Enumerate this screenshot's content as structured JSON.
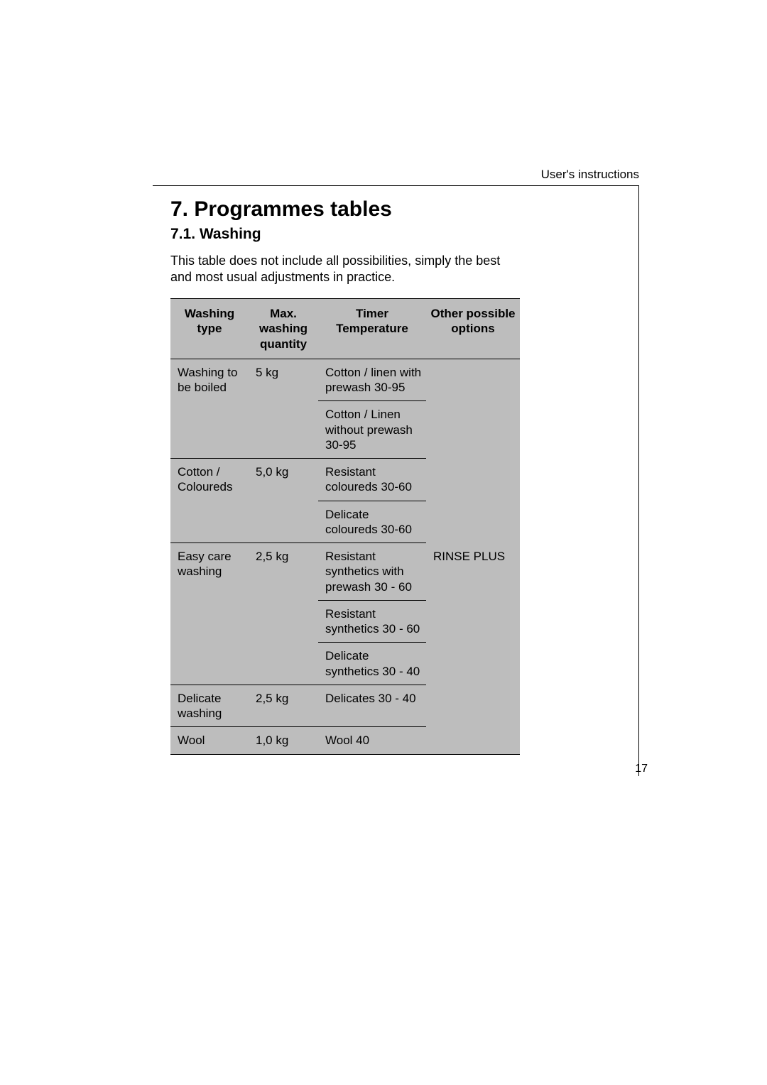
{
  "header": {
    "right": "User's instructions"
  },
  "title": "7. Programmes tables",
  "subtitle": "7.1. Washing",
  "intro": "This table does not include all possibilities, simply the best and most usual adjustments in practice.",
  "table": {
    "columns": [
      "Washing type",
      "Max. washing quantity",
      "Timer Temperature",
      "Other possible options"
    ],
    "options_cell": "RINSE PLUS",
    "groups": [
      {
        "washing_type": "Washing to be boiled",
        "quantity": "5 kg",
        "timers": [
          "Cotton / linen with prewash 30-95",
          "Cotton / Linen without  prewash 30-95"
        ]
      },
      {
        "washing_type": "Cotton / Coloureds",
        "quantity": "5,0 kg",
        "timers": [
          "Resistant coloureds 30-60",
          "Delicate coloureds 30-60"
        ]
      },
      {
        "washing_type": "Easy care washing",
        "quantity": "2,5 kg",
        "timers": [
          "Resistant  synthetics with prewash 30 - 60",
          "Resistant synthetics 30 - 60",
          "Delicate synthetics 30 - 40"
        ]
      },
      {
        "washing_type": "Delicate washing",
        "quantity": "2,5 kg",
        "timers": [
          "Delicates 30 - 40"
        ]
      },
      {
        "washing_type": "Wool",
        "quantity": "1,0 kg",
        "timers": [
          "Wool 40"
        ]
      }
    ]
  },
  "page_number": "17",
  "style": {
    "background_color": "#ffffff",
    "table_bg": "#bdbdbd",
    "border_color": "#000000",
    "font_family": "Helvetica",
    "title_fontsize": 30,
    "subtitle_fontsize": 21,
    "body_fontsize": 18,
    "table_fontsize": 17
  }
}
